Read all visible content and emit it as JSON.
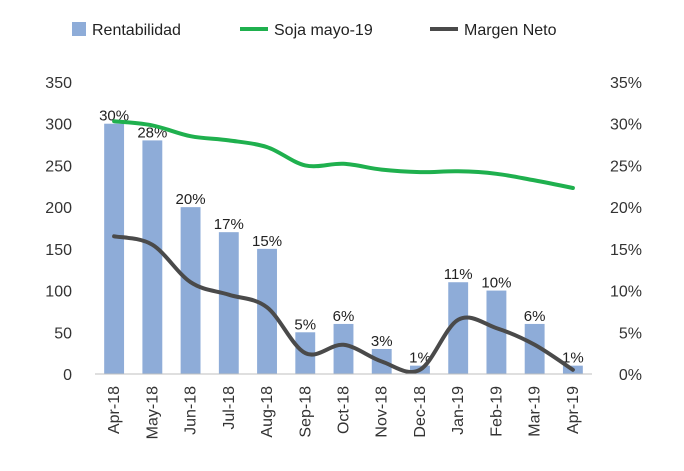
{
  "chart_data": {
    "type": "bar",
    "categories": [
      "Apr-18",
      "May-18",
      "Jun-18",
      "Jul-18",
      "Aug-18",
      "Sep-18",
      "Oct-18",
      "Nov-18",
      "Dec-18",
      "Jan-19",
      "Feb-19",
      "Mar-19",
      "Apr-19"
    ],
    "left_axis": {
      "ylim": [
        0,
        350
      ],
      "ticks": [
        "0",
        "50",
        "100",
        "150",
        "200",
        "250",
        "300",
        "350"
      ]
    },
    "right_axis": {
      "ylim": [
        0,
        35
      ],
      "ticks": [
        "0%",
        "5%",
        "10%",
        "15%",
        "20%",
        "25%",
        "30%",
        "35%"
      ]
    },
    "series": [
      {
        "name": "Rentabilidad",
        "type": "bar",
        "axis": "right",
        "values": [
          30,
          28,
          20,
          17,
          15,
          5,
          6,
          3,
          1,
          11,
          10,
          6,
          1
        ],
        "data_labels": [
          "30%",
          "28%",
          "20%",
          "17%",
          "15%",
          "5%",
          "6%",
          "3%",
          "1%",
          "11%",
          "10%",
          "6%",
          "1%"
        ],
        "color": "#8EACD8"
      },
      {
        "name": "Soja mayo-19",
        "type": "line",
        "axis": "left",
        "values": [
          303,
          298,
          285,
          280,
          272,
          250,
          252,
          245,
          242,
          243,
          240,
          232,
          223
        ],
        "color": "#1FB04E"
      },
      {
        "name": "Margen Neto",
        "type": "line",
        "axis": "right",
        "values": [
          16.5,
          15.5,
          11,
          9.5,
          8,
          2.5,
          3.5,
          1.5,
          0.5,
          6.5,
          5.5,
          3.5,
          0.5
        ],
        "color": "#4A4A4A"
      }
    ],
    "legend": "top"
  }
}
